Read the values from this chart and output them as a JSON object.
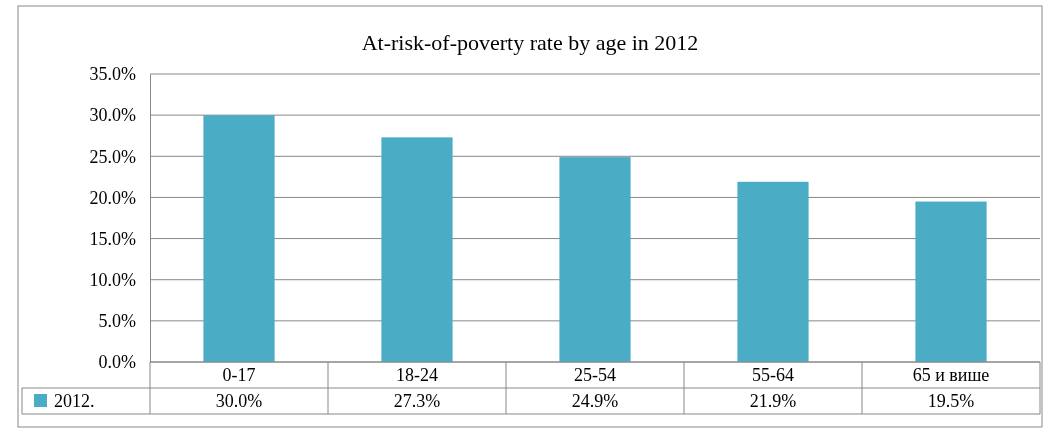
{
  "chart_data": {
    "type": "bar",
    "title": "At-risk-of-poverty rate by age in 2012",
    "categories": [
      "0-17",
      "18-24",
      "25-54",
      "55-64",
      "65 и више"
    ],
    "series": [
      {
        "name": "2012.",
        "color": "#4bacc6",
        "values": [
          30.0,
          27.3,
          24.9,
          21.9,
          19.5
        ],
        "value_labels": [
          "30.0%",
          "27.3%",
          "24.9%",
          "21.9%",
          "19.5%"
        ]
      }
    ],
    "ylim": [
      0,
      35
    ],
    "yticks": [
      {
        "value": 0,
        "label": "0.0%"
      },
      {
        "value": 5,
        "label": "5.0%"
      },
      {
        "value": 10,
        "label": "10.0%"
      },
      {
        "value": 15,
        "label": "15.0%"
      },
      {
        "value": 20,
        "label": "20.0%"
      },
      {
        "value": 25,
        "label": "25.0%"
      },
      {
        "value": 30,
        "label": "30.0%"
      },
      {
        "value": 35,
        "label": "35.0%"
      }
    ],
    "grid": "y",
    "legend": "bottom"
  }
}
